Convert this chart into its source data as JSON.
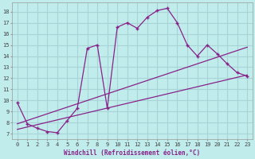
{
  "xlabel": "Windchill (Refroidissement éolien,°C)",
  "bg_color": "#c0ecec",
  "grid_color": "#a8d4d8",
  "line_color": "#882288",
  "xlim": [
    -0.5,
    23.5
  ],
  "ylim": [
    6.5,
    18.8
  ],
  "xticks": [
    0,
    1,
    2,
    3,
    4,
    5,
    6,
    7,
    8,
    9,
    10,
    11,
    12,
    13,
    14,
    15,
    16,
    17,
    18,
    19,
    20,
    21,
    22,
    23
  ],
  "yticks": [
    7,
    8,
    9,
    10,
    11,
    12,
    13,
    14,
    15,
    16,
    17,
    18
  ],
  "line1_x": [
    0,
    1,
    2,
    3,
    4,
    5,
    6,
    7,
    8,
    9,
    10,
    11,
    12,
    13,
    14,
    15,
    16,
    17,
    18,
    19,
    20,
    21,
    22,
    23
  ],
  "line1_y": [
    9.8,
    7.9,
    7.5,
    7.2,
    7.1,
    8.2,
    9.3,
    14.7,
    15.0,
    9.3,
    16.6,
    17.0,
    16.5,
    17.5,
    18.1,
    18.3,
    17.0,
    15.0,
    14.0,
    15.0,
    14.2,
    13.3,
    12.5,
    12.2
  ],
  "line2_x": [
    0,
    23
  ],
  "line2_y": [
    7.4,
    12.3
  ],
  "line3_x": [
    0,
    23
  ],
  "line3_y": [
    7.9,
    14.8
  ],
  "marker": "+"
}
